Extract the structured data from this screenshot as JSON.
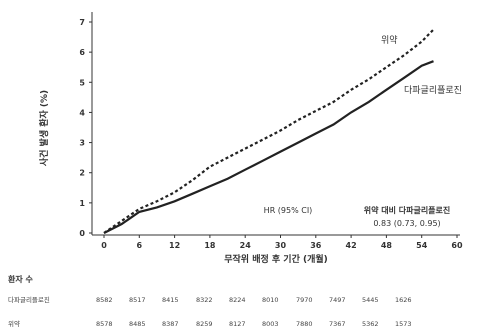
{
  "chart_data": {
    "type": "line",
    "xlabel": "무작위 배정 후 기간 (개월)",
    "ylabel": "사건 발생 환자 (%)",
    "xlim": [
      0,
      60
    ],
    "ylim": [
      0,
      7
    ],
    "xticks": [
      0,
      6,
      12,
      18,
      24,
      30,
      36,
      42,
      48,
      54,
      60
    ],
    "yticks": [
      0,
      1,
      2,
      3,
      4,
      5,
      6,
      7
    ],
    "grid": false,
    "series": [
      {
        "name": "위약",
        "style": "dashed",
        "color": "#222222",
        "x": [
          0,
          3,
          6,
          9,
          12,
          15,
          18,
          21,
          24,
          27,
          30,
          33,
          36,
          39,
          42,
          45,
          48,
          51,
          54,
          56
        ],
        "y": [
          0,
          0.4,
          0.8,
          1.05,
          1.35,
          1.75,
          2.2,
          2.5,
          2.8,
          3.1,
          3.4,
          3.75,
          4.05,
          4.35,
          4.75,
          5.1,
          5.5,
          5.9,
          6.35,
          6.75
        ]
      },
      {
        "name": "다파글리플로진",
        "style": "solid",
        "color": "#222222",
        "x": [
          0,
          3,
          6,
          9,
          12,
          15,
          18,
          21,
          24,
          27,
          30,
          33,
          36,
          39,
          42,
          45,
          48,
          51,
          54,
          56
        ],
        "y": [
          0,
          0.3,
          0.7,
          0.85,
          1.05,
          1.3,
          1.55,
          1.8,
          2.1,
          2.4,
          2.7,
          3.0,
          3.3,
          3.6,
          4.0,
          4.35,
          4.75,
          5.15,
          5.55,
          5.7
        ]
      }
    ],
    "annotations": {
      "hr_label": "HR (95% CI)",
      "comparison_label": "위약 대비 다파글리플로진",
      "hr_value": "0.83 (0.73, 0.95)"
    },
    "risk_table": {
      "title": "환자 수",
      "rows": [
        {
          "name": "다파글리플로진",
          "values": [
            "8582",
            "8517",
            "8415",
            "8322",
            "8224",
            "8010",
            "7970",
            "7497",
            "5445",
            "1626"
          ]
        },
        {
          "name": "위약",
          "values": [
            "8578",
            "8485",
            "8387",
            "8259",
            "8127",
            "8003",
            "7880",
            "7367",
            "5362",
            "1573"
          ]
        }
      ]
    }
  }
}
